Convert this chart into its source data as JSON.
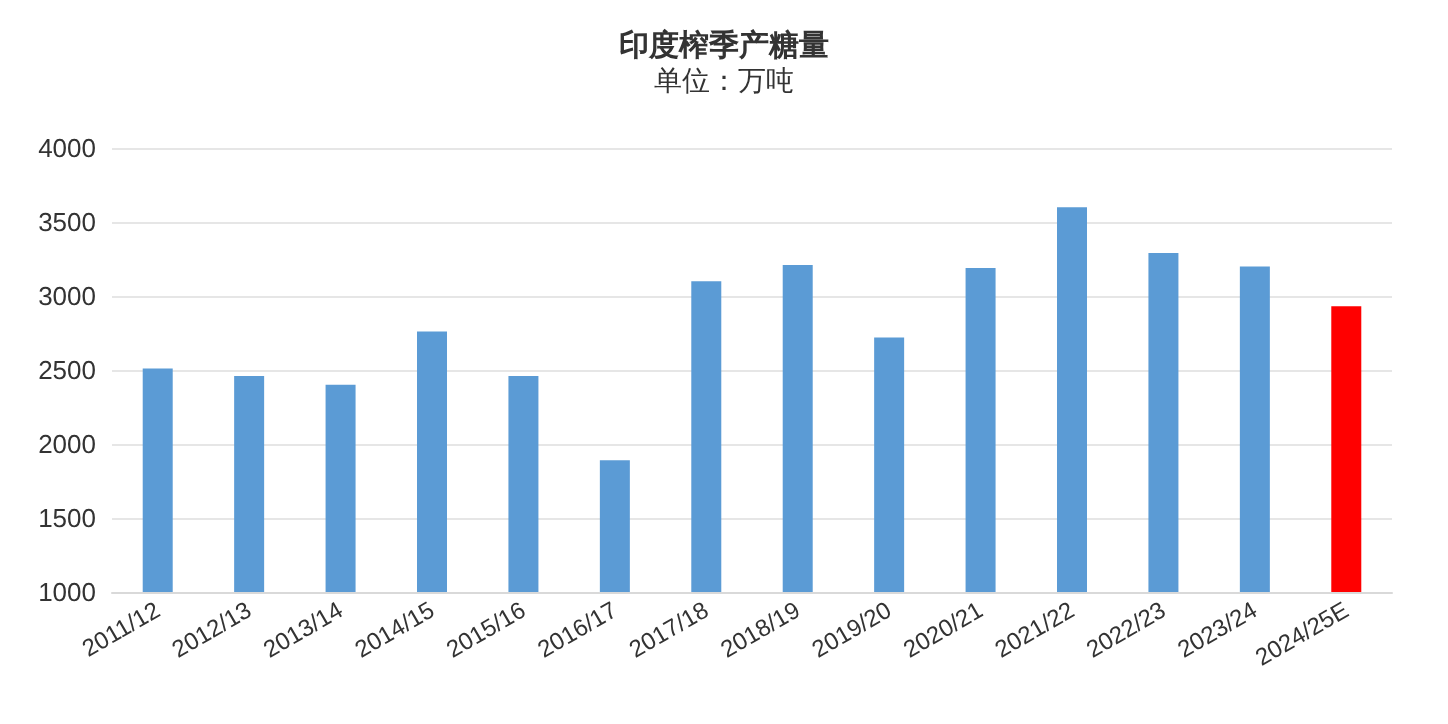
{
  "chart_data": {
    "type": "bar",
    "title": "印度榨季产糖量",
    "subtitle": "单位：万吨",
    "categories": [
      "2011/12",
      "2012/13",
      "2013/14",
      "2014/15",
      "2015/16",
      "2016/17",
      "2017/18",
      "2018/19",
      "2019/20",
      "2020/21",
      "2021/22",
      "2022/23",
      "2023/24",
      "2024/25E"
    ],
    "values": [
      2510,
      2460,
      2400,
      2760,
      2460,
      1890,
      3100,
      3210,
      2720,
      3190,
      3600,
      3290,
      3200,
      2930
    ],
    "colors": [
      "#5b9bd5",
      "#5b9bd5",
      "#5b9bd5",
      "#5b9bd5",
      "#5b9bd5",
      "#5b9bd5",
      "#5b9bd5",
      "#5b9bd5",
      "#5b9bd5",
      "#5b9bd5",
      "#5b9bd5",
      "#5b9bd5",
      "#5b9bd5",
      "#ff0000"
    ],
    "ylim": [
      1000,
      4000
    ],
    "yticks": [
      1000,
      1500,
      2000,
      2500,
      3000,
      3500,
      4000
    ],
    "grid": "y"
  }
}
